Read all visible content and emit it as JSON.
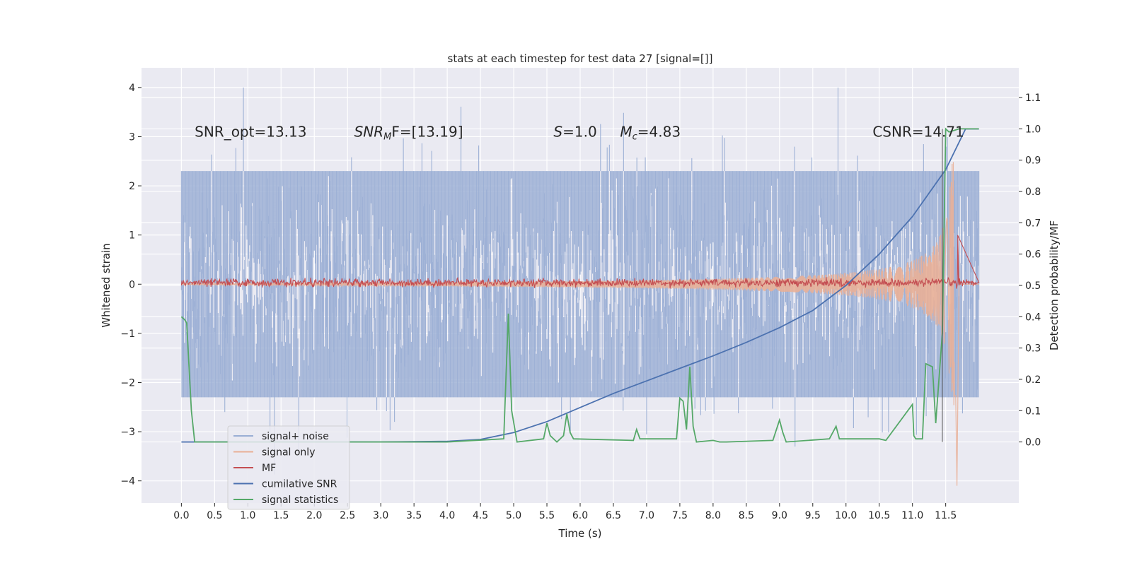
{
  "chart_data": {
    "type": "line",
    "title": "stats at each timestep for test data 27 [signal=[]]",
    "xlabel": "Time (s)",
    "ylabel_left": "Whitened strain",
    "ylabel_right": "Detection probability/MF",
    "xlim": [
      -0.6,
      12.6
    ],
    "ylim_left": [
      -4.45,
      4.4
    ],
    "ylim_right": [
      -0.195,
      1.195
    ],
    "x_ticks": [
      "0.0",
      "0.5",
      "1.0",
      "1.5",
      "2.0",
      "2.5",
      "3.0",
      "3.5",
      "4.0",
      "4.5",
      "5.0",
      "5.5",
      "6.0",
      "6.5",
      "7.0",
      "7.5",
      "8.0",
      "8.5",
      "9.0",
      "9.5",
      "10.0",
      "10.5",
      "11.0",
      "11.5"
    ],
    "y_ticks_left": [
      "−4",
      "−3",
      "−2",
      "−1",
      "0",
      "1",
      "2",
      "3",
      "4"
    ],
    "y_ticks_right": [
      "0.0",
      "0.1",
      "0.2",
      "0.3",
      "0.4",
      "0.5",
      "0.6",
      "0.7",
      "0.8",
      "0.9",
      "1.0",
      "1.1"
    ],
    "grid": true,
    "legend_position": "lower-left",
    "annotations": [
      {
        "text": "SNR_opt=13.13",
        "x": 0.2,
        "y": 3.1
      },
      {
        "text": "SNR_MF=[13.19]",
        "x": 2.6,
        "y": 3.1
      },
      {
        "text": "S=1.0",
        "x": 5.6,
        "y": 3.1
      },
      {
        "text": "M_c=4.83",
        "x": 6.6,
        "y": 3.1
      },
      {
        "text": "CSNR=14.71",
        "x": 10.4,
        "y": 3.1
      }
    ],
    "series": [
      {
        "name": "signal+ noise",
        "color": "#9aaed4",
        "axis": "left",
        "kind": "noise_band",
        "envelope_low": -2.6,
        "envelope_high": 2.6,
        "max": 4.0,
        "min": -4.1,
        "x_range": [
          0.0,
          12.0
        ]
      },
      {
        "name": "signal only",
        "color": "#e9b097",
        "axis": "left",
        "kind": "chirp",
        "amplitude_start": 0.02,
        "amplitude_end": 2.5,
        "peak_time": 11.65,
        "min": -4.1
      },
      {
        "name": "MF",
        "color": "#c44e52",
        "axis": "left",
        "kind": "noise_band",
        "envelope_low": -0.1,
        "envelope_high": 0.15,
        "spike_time": 11.68,
        "spike_value": 1.0
      },
      {
        "name": "cumilative SNR",
        "color": "#4c72b0",
        "axis": "right",
        "x": [
          0.0,
          3.0,
          4.0,
          4.5,
          5.0,
          5.5,
          6.0,
          6.5,
          7.0,
          7.5,
          8.0,
          8.5,
          9.0,
          9.5,
          10.0,
          10.5,
          11.0,
          11.5,
          11.8
        ],
        "y": [
          0.0,
          0.0,
          0.002,
          0.008,
          0.03,
          0.065,
          0.11,
          0.155,
          0.195,
          0.235,
          0.275,
          0.318,
          0.365,
          0.42,
          0.5,
          0.6,
          0.72,
          0.87,
          1.0
        ]
      },
      {
        "name": "signal statistics",
        "color": "#55a868",
        "axis": "right",
        "x": [
          0.0,
          0.05,
          0.08,
          0.15,
          0.2,
          0.25,
          0.3,
          1.0,
          2.0,
          3.0,
          4.0,
          4.85,
          4.92,
          4.97,
          5.05,
          5.45,
          5.5,
          5.55,
          5.65,
          5.75,
          5.8,
          5.85,
          5.9,
          6.8,
          6.85,
          6.9,
          7.45,
          7.5,
          7.55,
          7.6,
          7.65,
          7.7,
          7.75,
          8.0,
          8.1,
          8.2,
          8.9,
          9.0,
          9.05,
          9.1,
          9.75,
          9.85,
          9.9,
          10.0,
          10.5,
          10.6,
          11.0,
          11.02,
          11.05,
          11.15,
          11.2,
          11.3,
          11.35,
          11.45,
          11.5,
          11.55,
          11.7,
          12.0
        ],
        "y": [
          0.4,
          0.39,
          0.38,
          0.1,
          0.0,
          0.0,
          0.0,
          0.0,
          0.0,
          0.0,
          0.0,
          0.01,
          0.41,
          0.1,
          0.0,
          0.01,
          0.06,
          0.02,
          0.0,
          0.02,
          0.09,
          0.03,
          0.01,
          0.005,
          0.04,
          0.01,
          0.01,
          0.14,
          0.13,
          0.04,
          0.24,
          0.05,
          0.0,
          0.005,
          0.0,
          0.0,
          0.005,
          0.07,
          0.03,
          0.0,
          0.01,
          0.05,
          0.01,
          0.01,
          0.01,
          0.005,
          0.12,
          0.02,
          0.01,
          0.01,
          0.25,
          0.24,
          0.06,
          0.35,
          1.0,
          0.99,
          1.0,
          1.0
        ]
      }
    ]
  }
}
